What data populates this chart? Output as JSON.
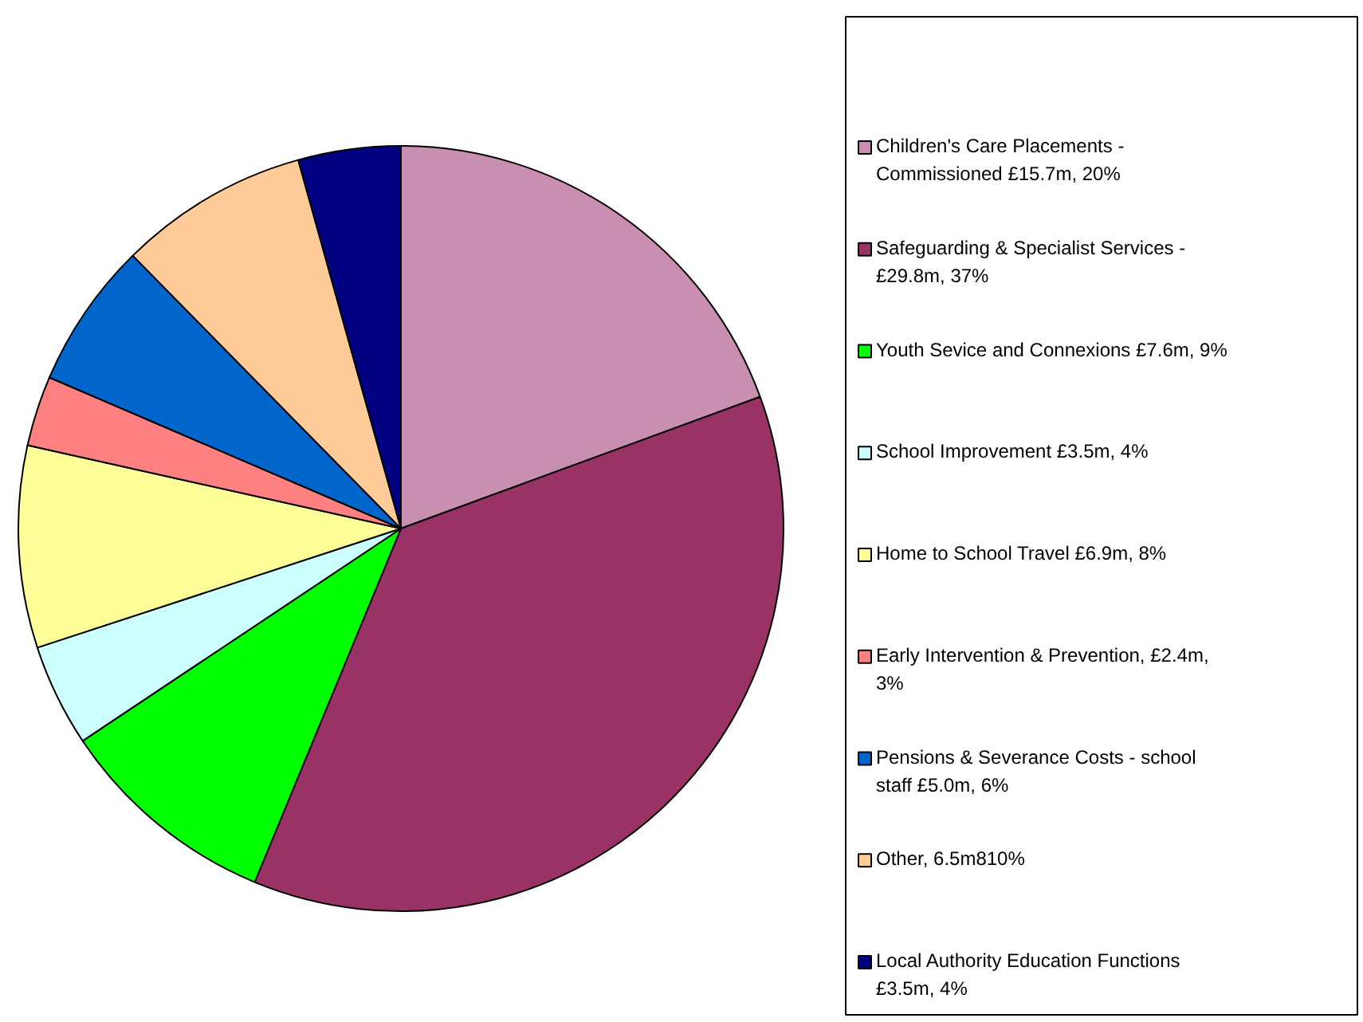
{
  "chart_data": {
    "type": "pie",
    "legend": "right",
    "categories": [
      "Children's Care Placements - Commissioned £15.7m, 20%",
      "Safeguarding & Specialist Services - £29.8m, 37%",
      "Youth Sevice and Connexions £7.6m, 9%",
      "School Improvement £3.5m, 4%",
      "Home to School Travel £6.9m, 8%",
      "Early Intervention & Prevention, £2.4m, 3%",
      "Pensions & Severance Costs - school staff £5.0m, 6%",
      "Other, 6.5m810%",
      "Local Authority Education Functions £3.5m, 4%"
    ],
    "values": [
      15.7,
      29.8,
      7.6,
      3.5,
      6.9,
      2.4,
      5.0,
      6.5,
      3.5
    ],
    "colors": [
      "#c98fb0",
      "#993366",
      "#00ff00",
      "#ccffff",
      "#ffff99",
      "#ff8080",
      "#0066cc",
      "#ffcc99",
      "#000080"
    ]
  }
}
